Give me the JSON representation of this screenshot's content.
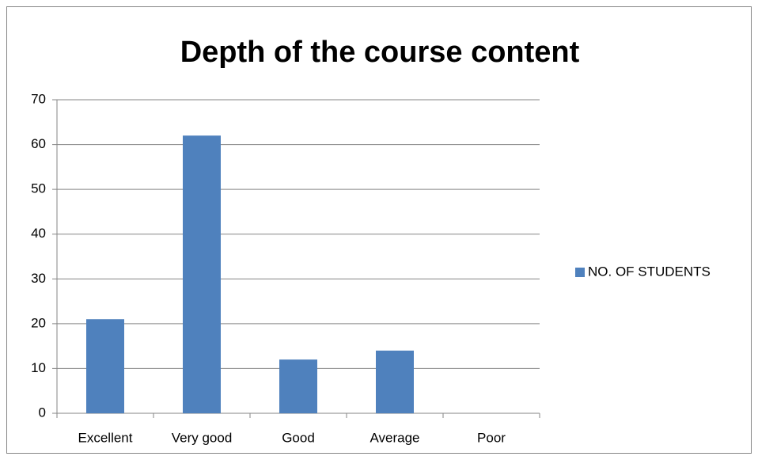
{
  "chart_data": {
    "type": "bar",
    "title": "Depth of the course content",
    "categories": [
      "Excellent",
      "Very good",
      "Good",
      "Average",
      "Poor"
    ],
    "series": [
      {
        "name": "NO. OF STUDENTS",
        "color": "#4f81bd",
        "values": [
          21,
          62,
          12,
          14,
          0
        ]
      }
    ],
    "ylim": [
      0,
      70
    ],
    "yticks": [
      0,
      10,
      20,
      30,
      40,
      50,
      60,
      70
    ],
    "grid": true,
    "legend": "right"
  }
}
